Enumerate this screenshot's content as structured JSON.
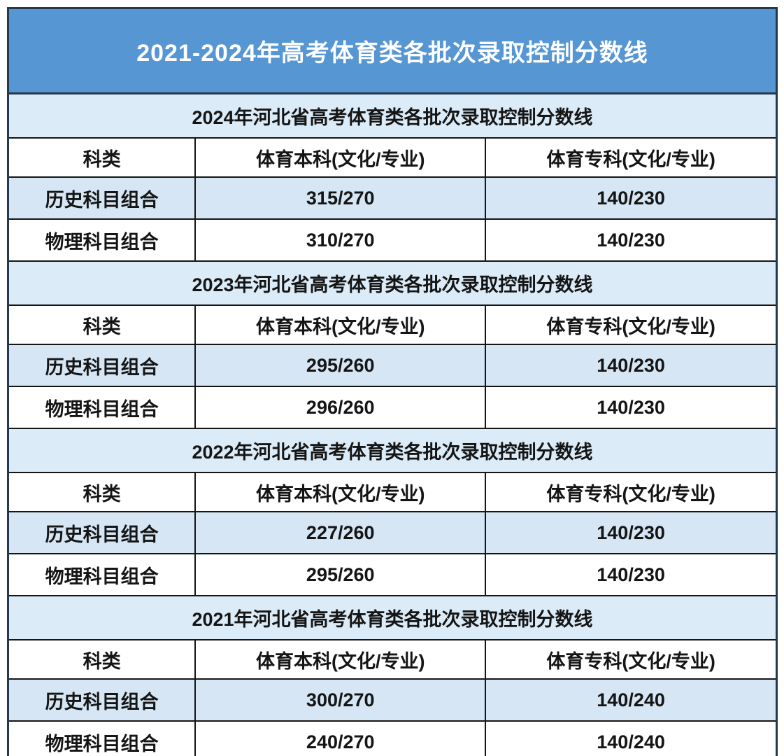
{
  "title": {
    "text": "2021-2024年高考体育类各批次录取控制分数线"
  },
  "columns": [
    "科类",
    "体育本科(文化/专业)",
    "体育专科(文化/专业)"
  ],
  "sections": [
    {
      "header": "2024年河北省高考体育类各批次录取控制分数线",
      "rows": [
        {
          "category": "历史科目组合",
          "undergrad": "315/270",
          "college": "140/230"
        },
        {
          "category": "物理科目组合",
          "undergrad": "310/270",
          "college": "140/230"
        }
      ]
    },
    {
      "header": "2023年河北省高考体育类各批次录取控制分数线",
      "rows": [
        {
          "category": "历史科目组合",
          "undergrad": "295/260",
          "college": "140/230"
        },
        {
          "category": "物理科目组合",
          "undergrad": "296/260",
          "college": "140/230"
        }
      ]
    },
    {
      "header": "2022年河北省高考体育类各批次录取控制分数线",
      "rows": [
        {
          "category": "历史科目组合",
          "undergrad": "227/260",
          "college": "140/230"
        },
        {
          "category": "物理科目组合",
          "undergrad": "295/260",
          "college": "140/230"
        }
      ]
    },
    {
      "header": "2021年河北省高考体育类各批次录取控制分数线",
      "rows": [
        {
          "category": "历史科目组合",
          "undergrad": "300/270",
          "college": "140/240"
        },
        {
          "category": "物理科目组合",
          "undergrad": "240/270",
          "college": "140/240"
        }
      ]
    }
  ],
  "colors": {
    "banner_bg": "#5696d3",
    "frame_border": "#24384e",
    "section_band_bg": "#dcebf8",
    "alt_row_bg": "#d6e6f5",
    "cell_border": "#161616",
    "text": "#151515",
    "title_text": "#ffffff"
  },
  "chart_data": {
    "type": "table",
    "title": "2021-2024年高考体育类各批次录取控制分数线",
    "tables": [
      {
        "title": "2024年河北省高考体育类各批次录取控制分数线",
        "columns": [
          "科类",
          "体育本科(文化/专业)",
          "体育专科(文化/专业)"
        ],
        "rows": [
          [
            "历史科目组合",
            "315/270",
            "140/230"
          ],
          [
            "物理科目组合",
            "310/270",
            "140/230"
          ]
        ]
      },
      {
        "title": "2023年河北省高考体育类各批次录取控制分数线",
        "columns": [
          "科类",
          "体育本科(文化/专业)",
          "体育专科(文化/专业)"
        ],
        "rows": [
          [
            "历史科目组合",
            "295/260",
            "140/230"
          ],
          [
            "物理科目组合",
            "296/260",
            "140/230"
          ]
        ]
      },
      {
        "title": "2022年河北省高考体育类各批次录取控制分数线",
        "columns": [
          "科类",
          "体育本科(文化/专业)",
          "体育专科(文化/专业)"
        ],
        "rows": [
          [
            "历史科目组合",
            "227/260",
            "140/230"
          ],
          [
            "物理科目组合",
            "295/260",
            "140/230"
          ]
        ]
      },
      {
        "title": "2021年河北省高考体育类各批次录取控制分数线",
        "columns": [
          "科类",
          "体育本科(文化/专业)",
          "体育专科(文化/专业)"
        ],
        "rows": [
          [
            "历史科目组合",
            "300/270",
            "140/240"
          ],
          [
            "物理科目组合",
            "240/270",
            "140/240"
          ]
        ]
      }
    ]
  }
}
